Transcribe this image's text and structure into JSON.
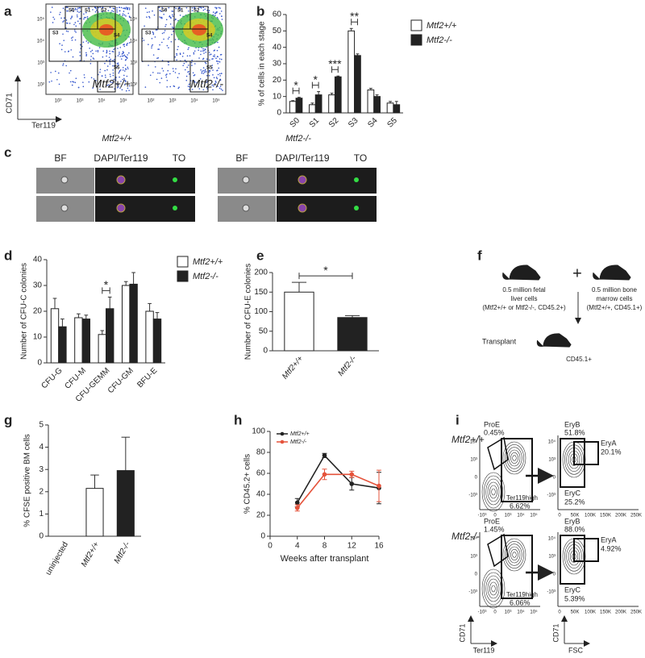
{
  "figure": {
    "panel_labels": [
      "a",
      "b",
      "c",
      "d",
      "e",
      "f",
      "g",
      "h",
      "i"
    ],
    "panel_a": {
      "gates": [
        "S0",
        "S1",
        "S2",
        "S3",
        "S4",
        "S5"
      ],
      "genotypes": [
        "Mtf2+/+",
        "Mtf2-/-"
      ],
      "y_label": "CD71",
      "x_label": "Ter119",
      "ticks": [
        "10²",
        "10³",
        "10⁴",
        "10⁵"
      ]
    },
    "panel_c": {
      "genotypes": [
        "Mtf2+/+",
        "Mtf2-/-"
      ],
      "channels": [
        "BF",
        "DAPI/Ter119",
        "TO"
      ]
    },
    "panel_f": {
      "donor_lines": [
        "0.5 million fetal",
        "liver cells",
        "(Mtf2+/+ or Mtf2-/-, CD45.2+)"
      ],
      "support_lines": [
        "0.5 million bone",
        "marrow cells",
        "(Mtf2+/+, CD45.1+)"
      ],
      "plus": "+",
      "transplant": "Transplant",
      "recipient": "CD45.1+"
    },
    "panel_i": {
      "rows": [
        {
          "genotype": "Mtf2+/+",
          "proe": "ProE",
          "proe_pct": "0.45%",
          "ter": "Ter119high",
          "ter_pct": "6.62%",
          "eryb": "EryB",
          "eryb_pct": "51.8%",
          "erya": "EryA",
          "erya_pct": "20.1%",
          "eryc": "EryC",
          "eryc_pct": "25.2%"
        },
        {
          "genotype": "Mtf2-/-",
          "proe": "ProE",
          "proe_pct": "1.45%",
          "ter": "Ter119high",
          "ter_pct": "6.06%",
          "eryb": "EryB",
          "eryb_pct": "88.0%",
          "erya": "EryA",
          "erya_pct": "4.92%",
          "eryc": "EryC",
          "eryc_pct": "5.39%"
        }
      ],
      "y_ticks": [
        "10⁴",
        "10³",
        "0",
        "-10³"
      ],
      "x_ticks": [
        "-10³",
        "0",
        "10³",
        "10⁴",
        "10⁵"
      ],
      "fsc_ticks": [
        "0",
        "50K",
        "100K",
        "150K",
        "200K",
        "250K"
      ],
      "y_label": "CD71",
      "x_label": "Ter119",
      "fsc_label": "FSC"
    }
  },
  "chart_data": [
    {
      "type": "bar",
      "y_label": "% of cells in each stage",
      "categories": [
        "S0",
        "S1",
        "S2",
        "S3",
        "S4",
        "S5"
      ],
      "series": [
        {
          "name": "Mtf2+/+",
          "color": "#ffffff",
          "values": [
            7,
            5,
            11,
            50,
            14,
            6
          ],
          "errors": [
            0.5,
            1,
            1,
            1.5,
            1,
            1
          ]
        },
        {
          "name": "Mtf2-/-",
          "color": "#222222",
          "values": [
            9,
            11,
            22,
            35,
            10,
            5
          ],
          "errors": [
            0.5,
            2,
            0.5,
            1,
            1,
            2
          ]
        }
      ],
      "ylim": [
        0,
        60
      ],
      "yticks": [
        0,
        10,
        20,
        30,
        40,
        50,
        60
      ],
      "annotations": [
        {
          "text": "*",
          "categories": [
            "S0"
          ]
        },
        {
          "text": "*",
          "categories": [
            "S1"
          ]
        },
        {
          "text": "***",
          "categories": [
            "S2"
          ]
        },
        {
          "text": "**",
          "categories": [
            "S3"
          ]
        }
      ]
    },
    {
      "type": "bar",
      "y_label": "Number of CFU-C colonies",
      "categories": [
        "CFU-G",
        "CFU-M",
        "CFU-GEMM",
        "CFU-GM",
        "BFU-E"
      ],
      "series": [
        {
          "name": "Mtf2+/+",
          "color": "#ffffff",
          "values": [
            21,
            17.5,
            11,
            30,
            20
          ],
          "errors": [
            4,
            1.5,
            1.5,
            1.5,
            3
          ]
        },
        {
          "name": "Mtf2-/-",
          "color": "#222222",
          "values": [
            14,
            17,
            21,
            30.5,
            17
          ],
          "errors": [
            3,
            1.5,
            4.5,
            4.5,
            2.5
          ]
        }
      ],
      "ylim": [
        0,
        40
      ],
      "yticks": [
        0,
        10,
        20,
        30,
        40
      ],
      "annotations": [
        {
          "text": "*",
          "categories": [
            "CFU-GEMM"
          ]
        }
      ]
    },
    {
      "type": "bar",
      "y_label": "Number of CFU-E colonies",
      "categories": [
        "Mtf2+/+",
        "Mtf2-/-"
      ],
      "values": [
        150,
        85
      ],
      "errors": [
        25,
        5
      ],
      "colors": [
        "#ffffff",
        "#222222"
      ],
      "ylim": [
        0,
        200
      ],
      "yticks": [
        0,
        50,
        100,
        150,
        200
      ],
      "annotations": [
        {
          "text": "*",
          "categories": [
            "Mtf2+/+",
            "Mtf2-/-"
          ]
        }
      ]
    },
    {
      "type": "bar",
      "y_label": "% CFSE positive BM cells",
      "categories": [
        "uninjected",
        "Mtf2+/+",
        "Mtf2-/-"
      ],
      "values": [
        0,
        2.15,
        2.95
      ],
      "errors": [
        0,
        0.6,
        1.5
      ],
      "colors": [
        "#ffffff",
        "#ffffff",
        "#222222"
      ],
      "ylim": [
        0,
        5
      ],
      "yticks": [
        0,
        1,
        2,
        3,
        4,
        5
      ]
    },
    {
      "type": "line",
      "x_label": "Weeks after transplant",
      "y_label": "% CD45.2+ cells",
      "x": [
        4,
        8,
        12,
        16
      ],
      "series": [
        {
          "name": "Mtf2+/+",
          "color": "#222222",
          "values": [
            32,
            77,
            50,
            46
          ],
          "errors": [
            4,
            2,
            6,
            15
          ]
        },
        {
          "name": "Mtf2-/-",
          "color": "#e5533b",
          "values": [
            27,
            59,
            59,
            48
          ],
          "errors": [
            3,
            5,
            3,
            15
          ]
        }
      ],
      "xlim": [
        0,
        16
      ],
      "xticks": [
        0,
        4,
        8,
        12,
        16
      ],
      "ylim": [
        0,
        100
      ],
      "yticks": [
        0,
        20,
        40,
        60,
        80,
        100
      ]
    }
  ]
}
